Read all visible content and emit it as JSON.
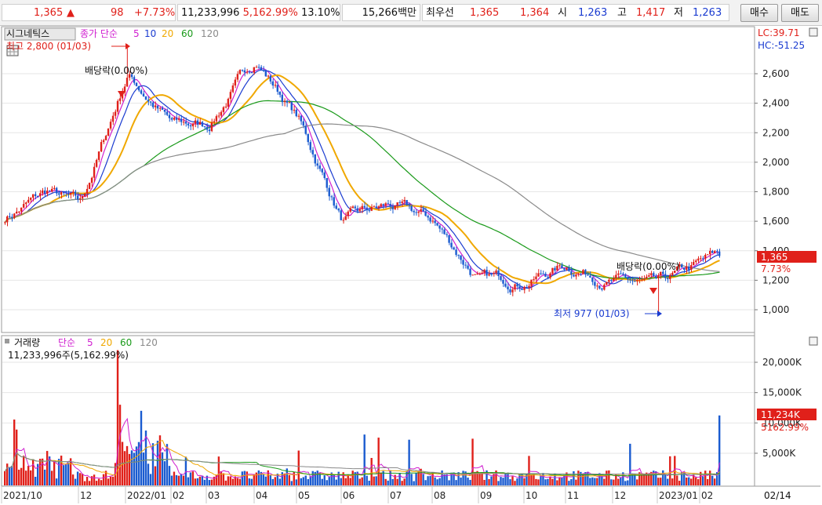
{
  "quote_bar": {
    "price": "1,365",
    "change_arrow": "▲",
    "change": "98",
    "change_pct": "+7.73%",
    "volume": "11,233,996",
    "volume_ratio": "5,162.99%",
    "turnover": "13.10%",
    "amount": "15,266백만",
    "best_label": "최우선",
    "best_ask": "1,365",
    "best_bid": "1,364",
    "open_label": "시",
    "open": "1,263",
    "high_label": "고",
    "high": "1,417",
    "low_label": "저",
    "low": "1,263",
    "buy_label": "매수",
    "sell_label": "매도"
  },
  "price_panel": {
    "stock_name": "시그네틱스",
    "legend_prefix": "종가 단순",
    "ma_periods": [
      "5",
      "10",
      "20",
      "60",
      "120"
    ],
    "ma_colors": [
      "#d020d0",
      "#1a3bd0",
      "#f0a800",
      "#1a9a1a",
      "#8a8a8a"
    ],
    "lc_label": "LC:39.71",
    "hc_label": "HC:-51.25",
    "high_annotation": "최고 2,800 (01/03)",
    "low_annotation": "최저 977 (01/03)",
    "dividend_label": "배당락(0.00%)",
    "current_price_box": "1,365",
    "current_change_pct": "7.73%",
    "y_ticks": [
      "2,600",
      "2,400",
      "2,200",
      "2,000",
      "1,800",
      "1,600",
      "1,400",
      "1,200",
      "1,000"
    ]
  },
  "volume_panel": {
    "title": "거래량",
    "legend_prefix": "단순",
    "ma_periods": [
      "5",
      "20",
      "60",
      "120"
    ],
    "ma_colors": [
      "#d020d0",
      "#f0a800",
      "#1a9a1a",
      "#8a8a8a"
    ],
    "info": "11,233,996주(5,162.99%)",
    "current_volume_box": "11,234K",
    "current_volume_pct": "5162.99%",
    "y_ticks": [
      "20,000K",
      "15,000K",
      "10,000K",
      "5,000K"
    ]
  },
  "x_axis": {
    "labels": [
      "2021/10",
      "12",
      "2022/01",
      "02",
      "03",
      "04",
      "05",
      "06",
      "07",
      "08",
      "09",
      "10",
      "11",
      "12",
      "2023/01",
      "02"
    ],
    "right_label": "02/14"
  },
  "colors": {
    "up": "#e0201a",
    "down": "#1a5bd0",
    "ma5": "#d020d0",
    "ma10": "#1a3bd0",
    "ma20": "#f0a800",
    "ma60": "#1a9a1a",
    "ma120": "#8a8a8a"
  },
  "chart_data": {
    "type": "line",
    "price_keypoints": [
      {
        "d": "2021/10",
        "p": 1620
      },
      {
        "d": "2021/11",
        "p": 1800
      },
      {
        "d": "2021/12",
        "p": 1700
      },
      {
        "d": "2022/01",
        "p": 2600
      },
      {
        "d": "2022/02",
        "p": 2250
      },
      {
        "d": "2022/03",
        "p": 2250
      },
      {
        "d": "2022/04",
        "p": 2700
      },
      {
        "d": "2022/05",
        "p": 2300
      },
      {
        "d": "2022/06",
        "p": 1600
      },
      {
        "d": "2022/07",
        "p": 1700
      },
      {
        "d": "2022/08",
        "p": 1600
      },
      {
        "d": "2022/09",
        "p": 1200
      },
      {
        "d": "2022/10",
        "p": 1200
      },
      {
        "d": "2022/11",
        "p": 1300
      },
      {
        "d": "2022/12",
        "p": 1200
      },
      {
        "d": "2023/01",
        "p": 1150
      },
      {
        "d": "2023/02",
        "p": 1365
      }
    ],
    "high": {
      "value": 2800,
      "date": "01/03"
    },
    "low": {
      "value": 977,
      "date": "01/03"
    },
    "last_close": 1365,
    "last_volume_k": 11234,
    "price_ylim": [
      900,
      2850
    ],
    "volume_ylim": [
      0,
      23000
    ]
  }
}
